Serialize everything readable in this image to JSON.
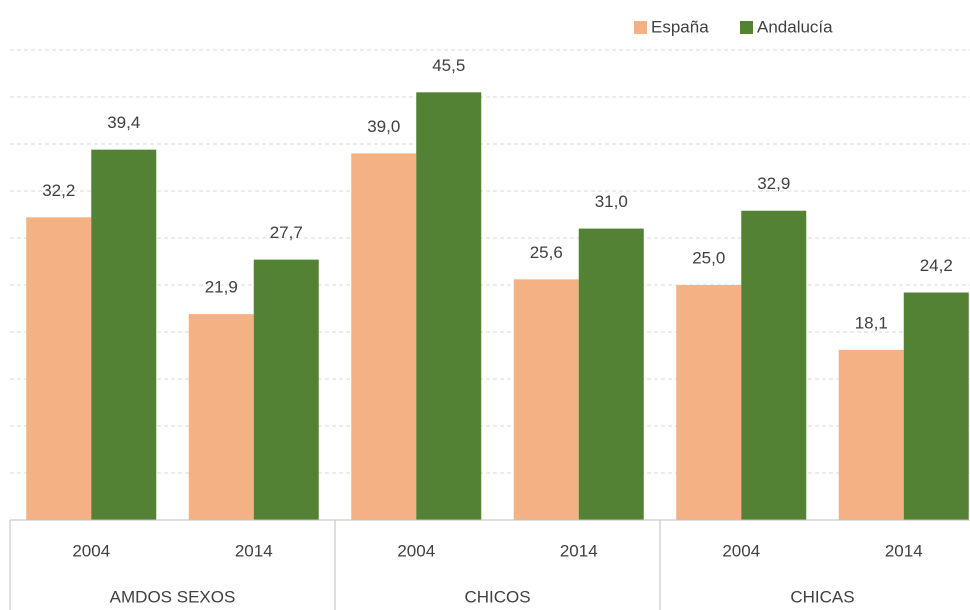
{
  "chart_data": {
    "type": "bar",
    "categories": [
      "2004",
      "2014",
      "2004",
      "2014",
      "2004",
      "2014"
    ],
    "groups": [
      "AMDOS SEXOS",
      "CHICOS",
      "CHICAS"
    ],
    "series": [
      {
        "name": "España",
        "color": "#f4b183",
        "values": [
          32.2,
          21.9,
          39.0,
          25.6,
          25.0,
          18.1
        ],
        "value_labels": [
          "32,2",
          "21,9",
          "39,0",
          "25,6",
          "25,0",
          "18,1"
        ]
      },
      {
        "name": "Andalucía",
        "color": "#548235",
        "values": [
          39.4,
          27.7,
          45.5,
          31.0,
          32.9,
          24.2
        ],
        "value_labels": [
          "39,4",
          "27,7",
          "45,5",
          "31,0",
          "32,9",
          "24,2"
        ]
      }
    ],
    "ylim": [
      0,
      50
    ],
    "yticks": [
      0,
      5,
      10,
      15,
      20,
      25,
      30,
      35,
      40,
      45,
      50
    ],
    "grid": true,
    "legend": "top-right"
  }
}
